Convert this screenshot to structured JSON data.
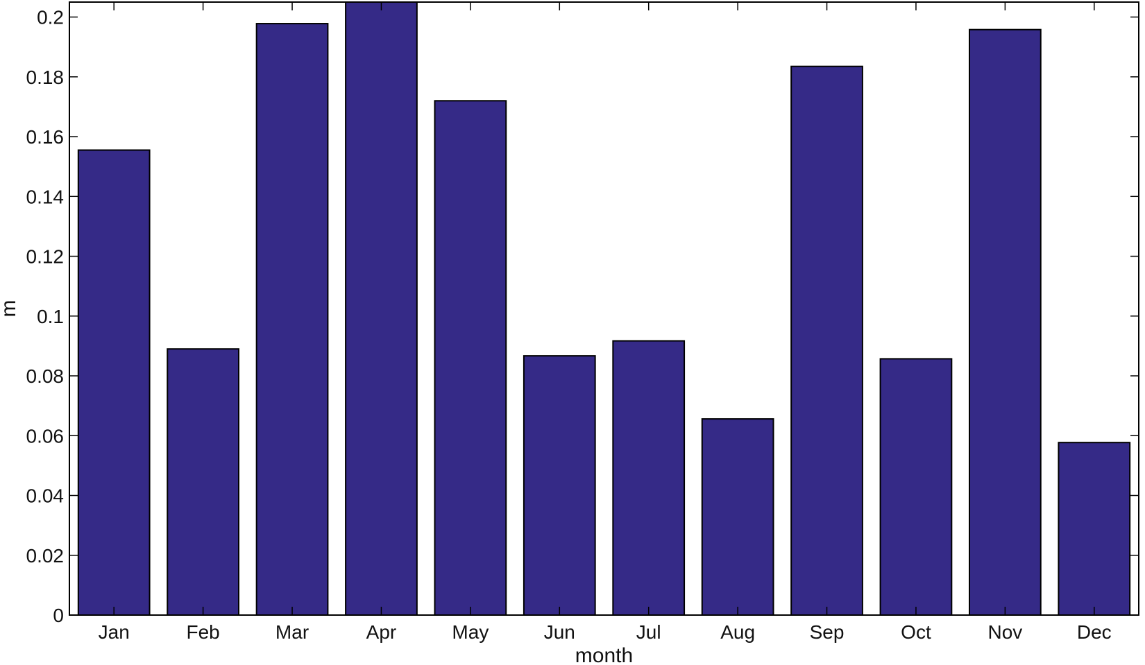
{
  "chart_data": {
    "type": "bar",
    "title": "",
    "xlabel": "month",
    "ylabel": "m",
    "categories": [
      "Jan",
      "Feb",
      "Mar",
      "Apr",
      "May",
      "Jun",
      "Jul",
      "Aug",
      "Sep",
      "Oct",
      "Nov",
      "Dec"
    ],
    "values": [
      0.1555,
      0.089,
      0.1978,
      0.2066,
      0.172,
      0.0867,
      0.0917,
      0.0656,
      0.1835,
      0.0857,
      0.1958,
      0.0577
    ],
    "ylim": [
      0,
      0.205
    ],
    "yticks": [
      0,
      0.02,
      0.04,
      0.06,
      0.08,
      0.1,
      0.12,
      0.14,
      0.16,
      0.18,
      0.2
    ],
    "ytick_labels": [
      "0",
      "0.02",
      "0.04",
      "0.06",
      "0.08",
      "0.1",
      "0.12",
      "0.14",
      "0.16",
      "0.18",
      "0.2"
    ],
    "grid": false,
    "legend": "none",
    "colors": {
      "bar": "#352a87",
      "edge": "#000000",
      "axis": "#000000"
    }
  }
}
